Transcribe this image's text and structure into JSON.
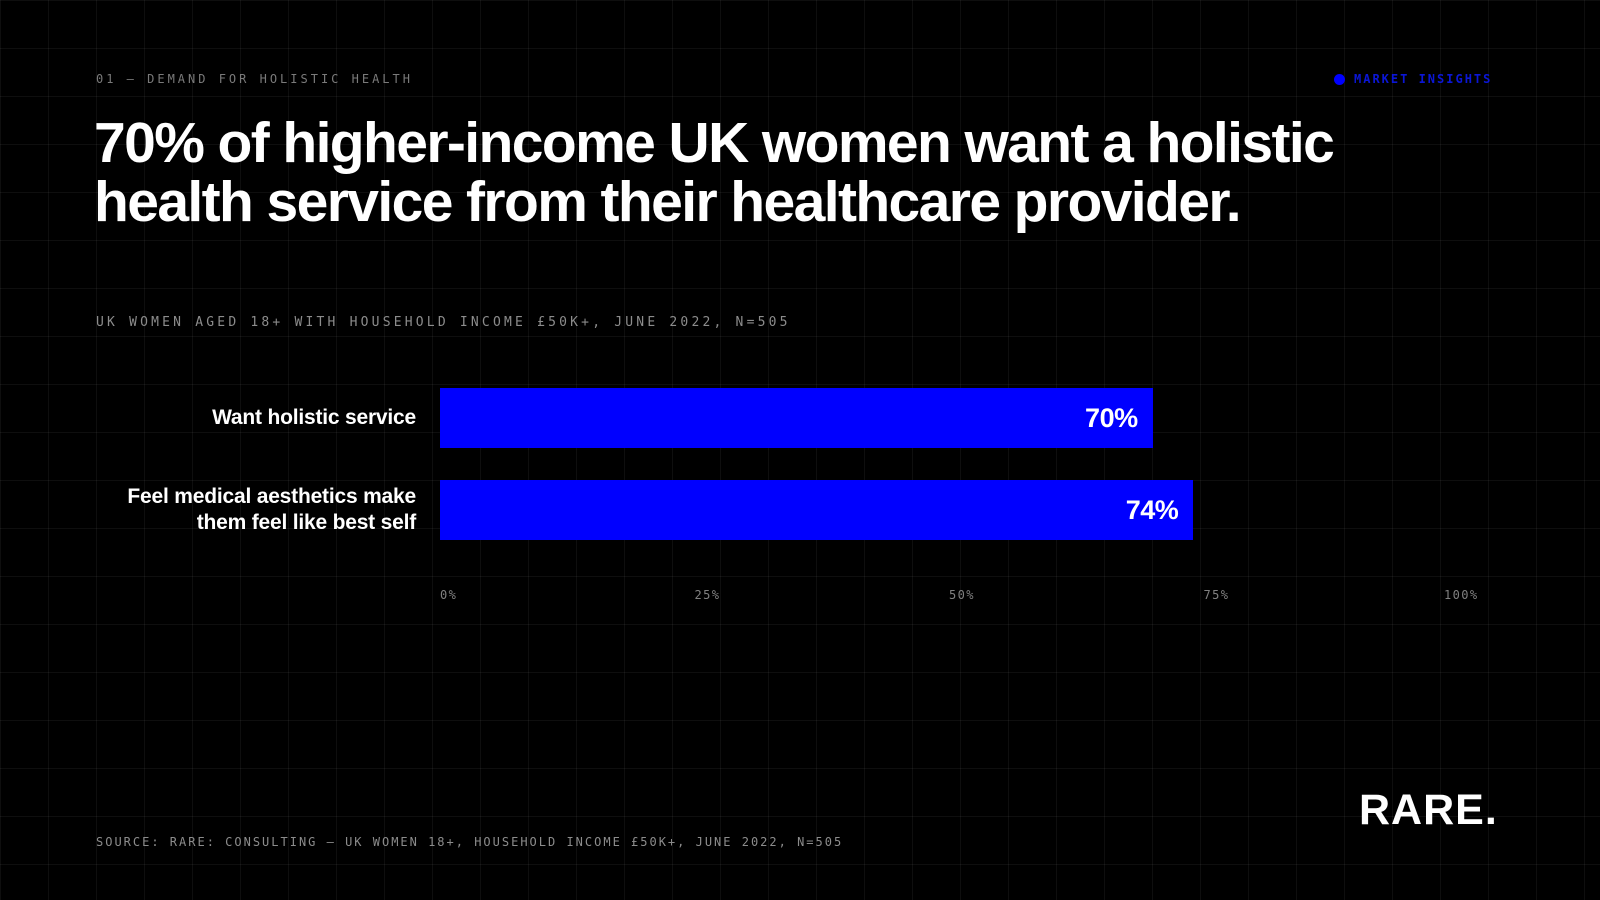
{
  "header": {
    "section_label": "01 — DEMAND FOR HOLISTIC HEALTH",
    "tag": "MARKET INSIGHTS"
  },
  "headline": "70% of higher-income UK women want a holistic health service from their healthcare provider.",
  "chart_data": {
    "type": "bar",
    "orientation": "horizontal",
    "title": "",
    "subtitle": "UK WOMEN AGED 18+ WITH HOUSEHOLD INCOME £50K+, JUNE 2022, N=505",
    "categories": [
      "Want holistic service",
      "Feel medical aesthetics make them feel like best self"
    ],
    "values": [
      70,
      74
    ],
    "value_labels": [
      "70%",
      "74%"
    ],
    "xlim": [
      0,
      100
    ],
    "ticks": [
      "0%",
      "25%",
      "50%",
      "75%",
      "100%"
    ],
    "grid": true,
    "legend": "none",
    "bar_color": "#0000ff"
  },
  "footer": {
    "source": "SOURCE: RARE: CONSULTING — UK WOMEN 18+, HOUSEHOLD INCOME £50K+, JUNE 2022, N=505",
    "logo": "RARE."
  },
  "colors": {
    "background": "#000000",
    "accent": "#0000ff",
    "text": "#ffffff"
  }
}
